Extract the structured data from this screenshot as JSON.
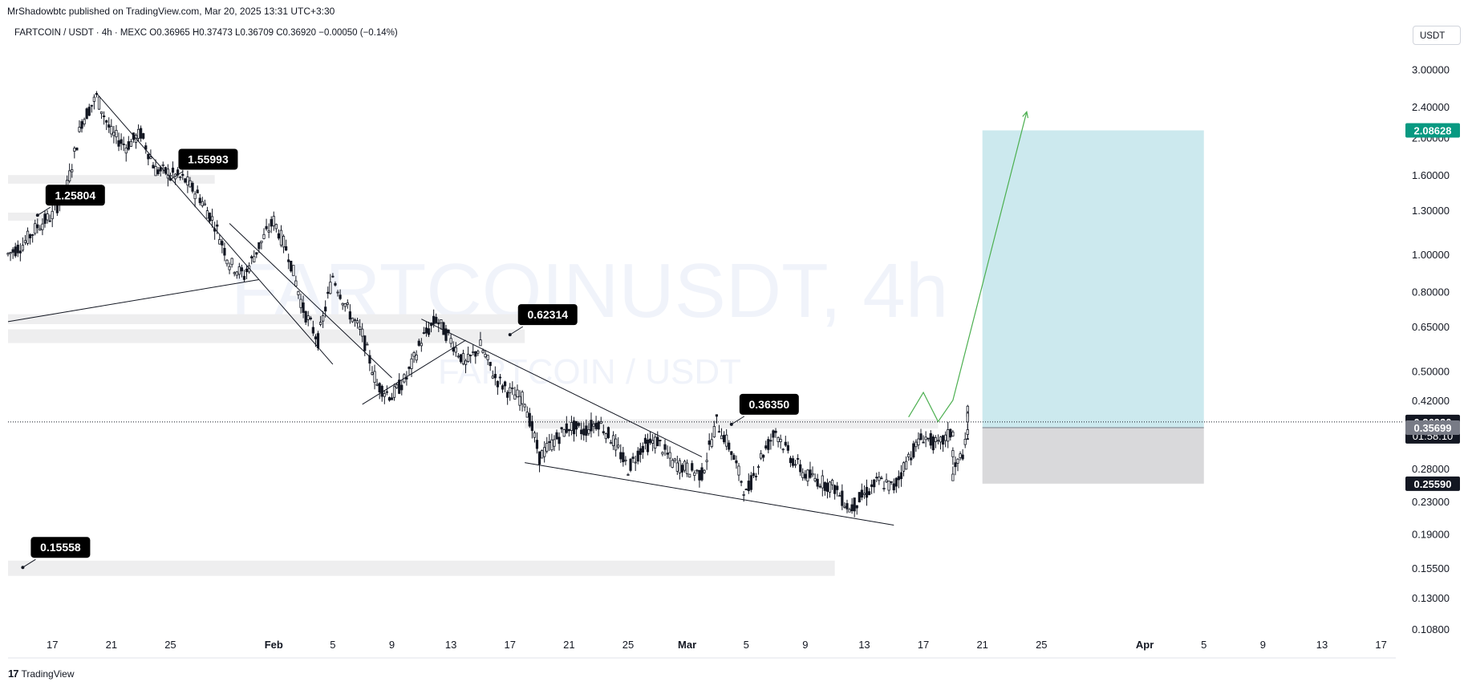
{
  "header": {
    "published": "MrShadowbtc published on TradingView.com, Mar 20, 2025 13:31 UTC+3:30",
    "symbol_line": "FARTCOIN / USDT · 4h · MEXC  O0.36965  H0.37473  L0.36709  C0.36920  −0.00050 (−0.14%)",
    "currency": "USDT"
  },
  "footer": {
    "brand": "TradingView",
    "logo_glyph": "17"
  },
  "watermark": {
    "main": "FARTCOINUSDT, 4h",
    "sub": "FARTCOIN / USDT"
  },
  "chart_data": {
    "type": "candlestick",
    "scale": "log",
    "timeframe": "4h",
    "price_ticks": [
      "3.00000",
      "2.40000",
      "2.00000",
      "1.60000",
      "1.30000",
      "1.00000",
      "0.80000",
      "0.65000",
      "0.50000",
      "0.42000",
      "0.28000",
      "0.23000",
      "0.19000",
      "0.15500",
      "0.13000",
      "0.10800"
    ],
    "price_tick_values": [
      3.0,
      2.4,
      2.0,
      1.6,
      1.3,
      1.0,
      0.8,
      0.65,
      0.5,
      0.42,
      0.28,
      0.23,
      0.19,
      0.155,
      0.13,
      0.108
    ],
    "time_ticks": [
      {
        "label": "17",
        "date": "2025-01-17",
        "bold": false
      },
      {
        "label": "21",
        "date": "2025-01-21",
        "bold": false
      },
      {
        "label": "25",
        "date": "2025-01-25",
        "bold": false
      },
      {
        "label": "Feb",
        "date": "2025-02-01",
        "bold": true
      },
      {
        "label": "5",
        "date": "2025-02-05",
        "bold": false
      },
      {
        "label": "9",
        "date": "2025-02-09",
        "bold": false
      },
      {
        "label": "13",
        "date": "2025-02-13",
        "bold": false
      },
      {
        "label": "17",
        "date": "2025-02-17",
        "bold": false
      },
      {
        "label": "21",
        "date": "2025-02-21",
        "bold": false
      },
      {
        "label": "25",
        "date": "2025-02-25",
        "bold": false
      },
      {
        "label": "Mar",
        "date": "2025-03-01",
        "bold": true
      },
      {
        "label": "5",
        "date": "2025-03-05",
        "bold": false
      },
      {
        "label": "9",
        "date": "2025-03-09",
        "bold": false
      },
      {
        "label": "13",
        "date": "2025-03-13",
        "bold": false
      },
      {
        "label": "17",
        "date": "2025-03-17",
        "bold": false
      },
      {
        "label": "21",
        "date": "2025-03-21",
        "bold": false
      },
      {
        "label": "25",
        "date": "2025-03-25",
        "bold": false
      },
      {
        "label": "Apr",
        "date": "2025-04-01",
        "bold": true
      },
      {
        "label": "5",
        "date": "2025-04-05",
        "bold": false
      },
      {
        "label": "9",
        "date": "2025-04-09",
        "bold": false
      },
      {
        "label": "13",
        "date": "2025-04-13",
        "bold": false
      },
      {
        "label": "17",
        "date": "2025-04-17",
        "bold": false
      }
    ],
    "x_range": [
      "2025-01-14",
      "2025-04-18"
    ],
    "y_range": [
      0.1,
      3.4
    ],
    "ohlc": {
      "open": "0.36965",
      "high": "0.37473",
      "low": "0.36709",
      "close": "0.36920",
      "change": "−0.00050 (−0.14%)"
    },
    "price_path": [
      [
        "2025-01-14",
        1.0
      ],
      [
        "2025-01-15",
        1.06
      ],
      [
        "2025-01-16",
        1.18
      ],
      [
        "2025-01-17",
        1.26
      ],
      [
        "2025-01-18",
        1.5
      ],
      [
        "2025-01-19",
        2.2
      ],
      [
        "2025-01-20",
        2.55
      ],
      [
        "2025-01-21",
        2.05
      ],
      [
        "2025-01-22",
        1.9
      ],
      [
        "2025-01-23",
        2.05
      ],
      [
        "2025-01-24",
        1.65
      ],
      [
        "2025-01-25",
        1.62
      ],
      [
        "2025-01-26",
        1.55
      ],
      [
        "2025-01-27",
        1.4
      ],
      [
        "2025-01-28",
        1.2
      ],
      [
        "2025-01-29",
        0.95
      ],
      [
        "2025-01-30",
        0.88
      ],
      [
        "2025-01-31",
        1.05
      ],
      [
        "2025-02-01",
        1.22
      ],
      [
        "2025-02-02",
        1.0
      ],
      [
        "2025-02-03",
        0.72
      ],
      [
        "2025-02-04",
        0.6
      ],
      [
        "2025-02-05",
        0.88
      ],
      [
        "2025-02-06",
        0.72
      ],
      [
        "2025-02-07",
        0.62
      ],
      [
        "2025-02-08",
        0.46
      ],
      [
        "2025-02-09",
        0.43
      ],
      [
        "2025-02-10",
        0.48
      ],
      [
        "2025-02-11",
        0.6
      ],
      [
        "2025-02-12",
        0.68
      ],
      [
        "2025-02-13",
        0.6
      ],
      [
        "2025-02-14",
        0.52
      ],
      [
        "2025-02-15",
        0.58
      ],
      [
        "2025-02-16",
        0.48
      ],
      [
        "2025-02-17",
        0.44
      ],
      [
        "2025-02-18",
        0.42
      ],
      [
        "2025-02-19",
        0.3
      ],
      [
        "2025-02-20",
        0.33
      ],
      [
        "2025-02-21",
        0.36
      ],
      [
        "2025-02-22",
        0.35
      ],
      [
        "2025-02-23",
        0.37
      ],
      [
        "2025-02-24",
        0.33
      ],
      [
        "2025-02-25",
        0.28
      ],
      [
        "2025-02-26",
        0.32
      ],
      [
        "2025-02-27",
        0.33
      ],
      [
        "2025-02-28",
        0.29
      ],
      [
        "2025-03-01",
        0.28
      ],
      [
        "2025-03-02",
        0.27
      ],
      [
        "2025-03-03",
        0.37
      ],
      [
        "2025-03-04",
        0.31
      ],
      [
        "2025-03-05",
        0.24
      ],
      [
        "2025-03-06",
        0.3
      ],
      [
        "2025-03-07",
        0.35
      ],
      [
        "2025-03-08",
        0.3
      ],
      [
        "2025-03-09",
        0.27
      ],
      [
        "2025-03-10",
        0.26
      ],
      [
        "2025-03-11",
        0.25
      ],
      [
        "2025-03-12",
        0.22
      ],
      [
        "2025-03-13",
        0.24
      ],
      [
        "2025-03-14",
        0.26
      ],
      [
        "2025-03-15",
        0.25
      ],
      [
        "2025-03-16",
        0.3
      ],
      [
        "2025-03-17",
        0.34
      ],
      [
        "2025-03-18",
        0.32
      ],
      [
        "2025-03-19",
        0.35
      ],
      [
        "2025-03-19",
        0.27
      ],
      [
        "2025-03-20",
        0.33
      ],
      [
        "2025-03-20",
        0.39
      ],
      [
        "2025-03-20",
        0.3692
      ]
    ],
    "trendlines": [
      {
        "from": [
          "2025-01-20",
          2.6
        ],
        "to": [
          "2025-02-05",
          0.52
        ]
      },
      {
        "from": [
          "2025-01-29",
          1.2
        ],
        "to": [
          "2025-02-09",
          0.48
        ]
      },
      {
        "from": [
          "2025-02-07",
          0.41
        ],
        "to": [
          "2025-02-14",
          0.6
        ]
      },
      {
        "from": [
          "2025-01-14",
          0.67
        ],
        "to": [
          "2025-01-31",
          0.86
        ]
      },
      {
        "from": [
          "2025-02-11",
          0.68
        ],
        "to": [
          "2025-03-02",
          0.3
        ]
      },
      {
        "from": [
          "2025-02-18",
          0.29
        ],
        "to": [
          "2025-03-15",
          0.2
        ]
      }
    ],
    "zones": [
      {
        "from": "2025-01-14",
        "to": "2025-01-28",
        "low": 1.52,
        "high": 1.6
      },
      {
        "from": "2025-01-14",
        "to": "2025-01-17",
        "low": 1.22,
        "high": 1.28
      },
      {
        "from": "2025-01-14",
        "to": "2025-02-18",
        "low": 0.66,
        "high": 0.7
      },
      {
        "from": "2025-01-14",
        "to": "2025-02-18",
        "low": 0.59,
        "high": 0.64
      },
      {
        "from": "2025-02-18",
        "to": "2025-03-18",
        "low": 0.355,
        "high": 0.375
      },
      {
        "from": "2025-01-14",
        "to": "2025-03-11",
        "low": 0.148,
        "high": 0.162
      }
    ],
    "position": {
      "from": "2025-03-21",
      "to": "2025-04-05",
      "target": 2.08628,
      "entry": 0.35699,
      "stop": 0.2559,
      "target_label": "2.08628",
      "entry_label": "0.35699",
      "stop_label": "0.25590",
      "profit_color": "#cce9ee",
      "loss_color": "#d9d9db"
    },
    "projection": [
      [
        "2025-03-16",
        0.38
      ],
      [
        "2025-03-17",
        0.44
      ],
      [
        "2025-03-18",
        0.37
      ],
      [
        "2025-03-19",
        0.42
      ],
      [
        "2025-03-24",
        2.33
      ]
    ],
    "labels": [
      {
        "text": "1.55993",
        "anchor": [
          "2025-01-25",
          1.56
        ]
      },
      {
        "text": "1.25804",
        "anchor": [
          "2025-01-16",
          1.26
        ]
      },
      {
        "text": "0.62314",
        "anchor": [
          "2025-02-17",
          0.62
        ]
      },
      {
        "text": "0.36350",
        "anchor": [
          "2025-03-04",
          0.364
        ]
      },
      {
        "text": "0.15558",
        "anchor": [
          "2025-01-15",
          0.1556
        ]
      }
    ],
    "current_price": {
      "price": 0.3692,
      "label": "0.36920",
      "countdown": "01:58:10"
    },
    "colors": {
      "candle_up": "#131722",
      "candle_down": "#131722",
      "target_badge": "#089981",
      "entry_badge": "#787b86",
      "stop_badge": "#131722",
      "price_badge": "#131722",
      "projection": "#4caf50",
      "zone": "#eeeeef"
    }
  }
}
